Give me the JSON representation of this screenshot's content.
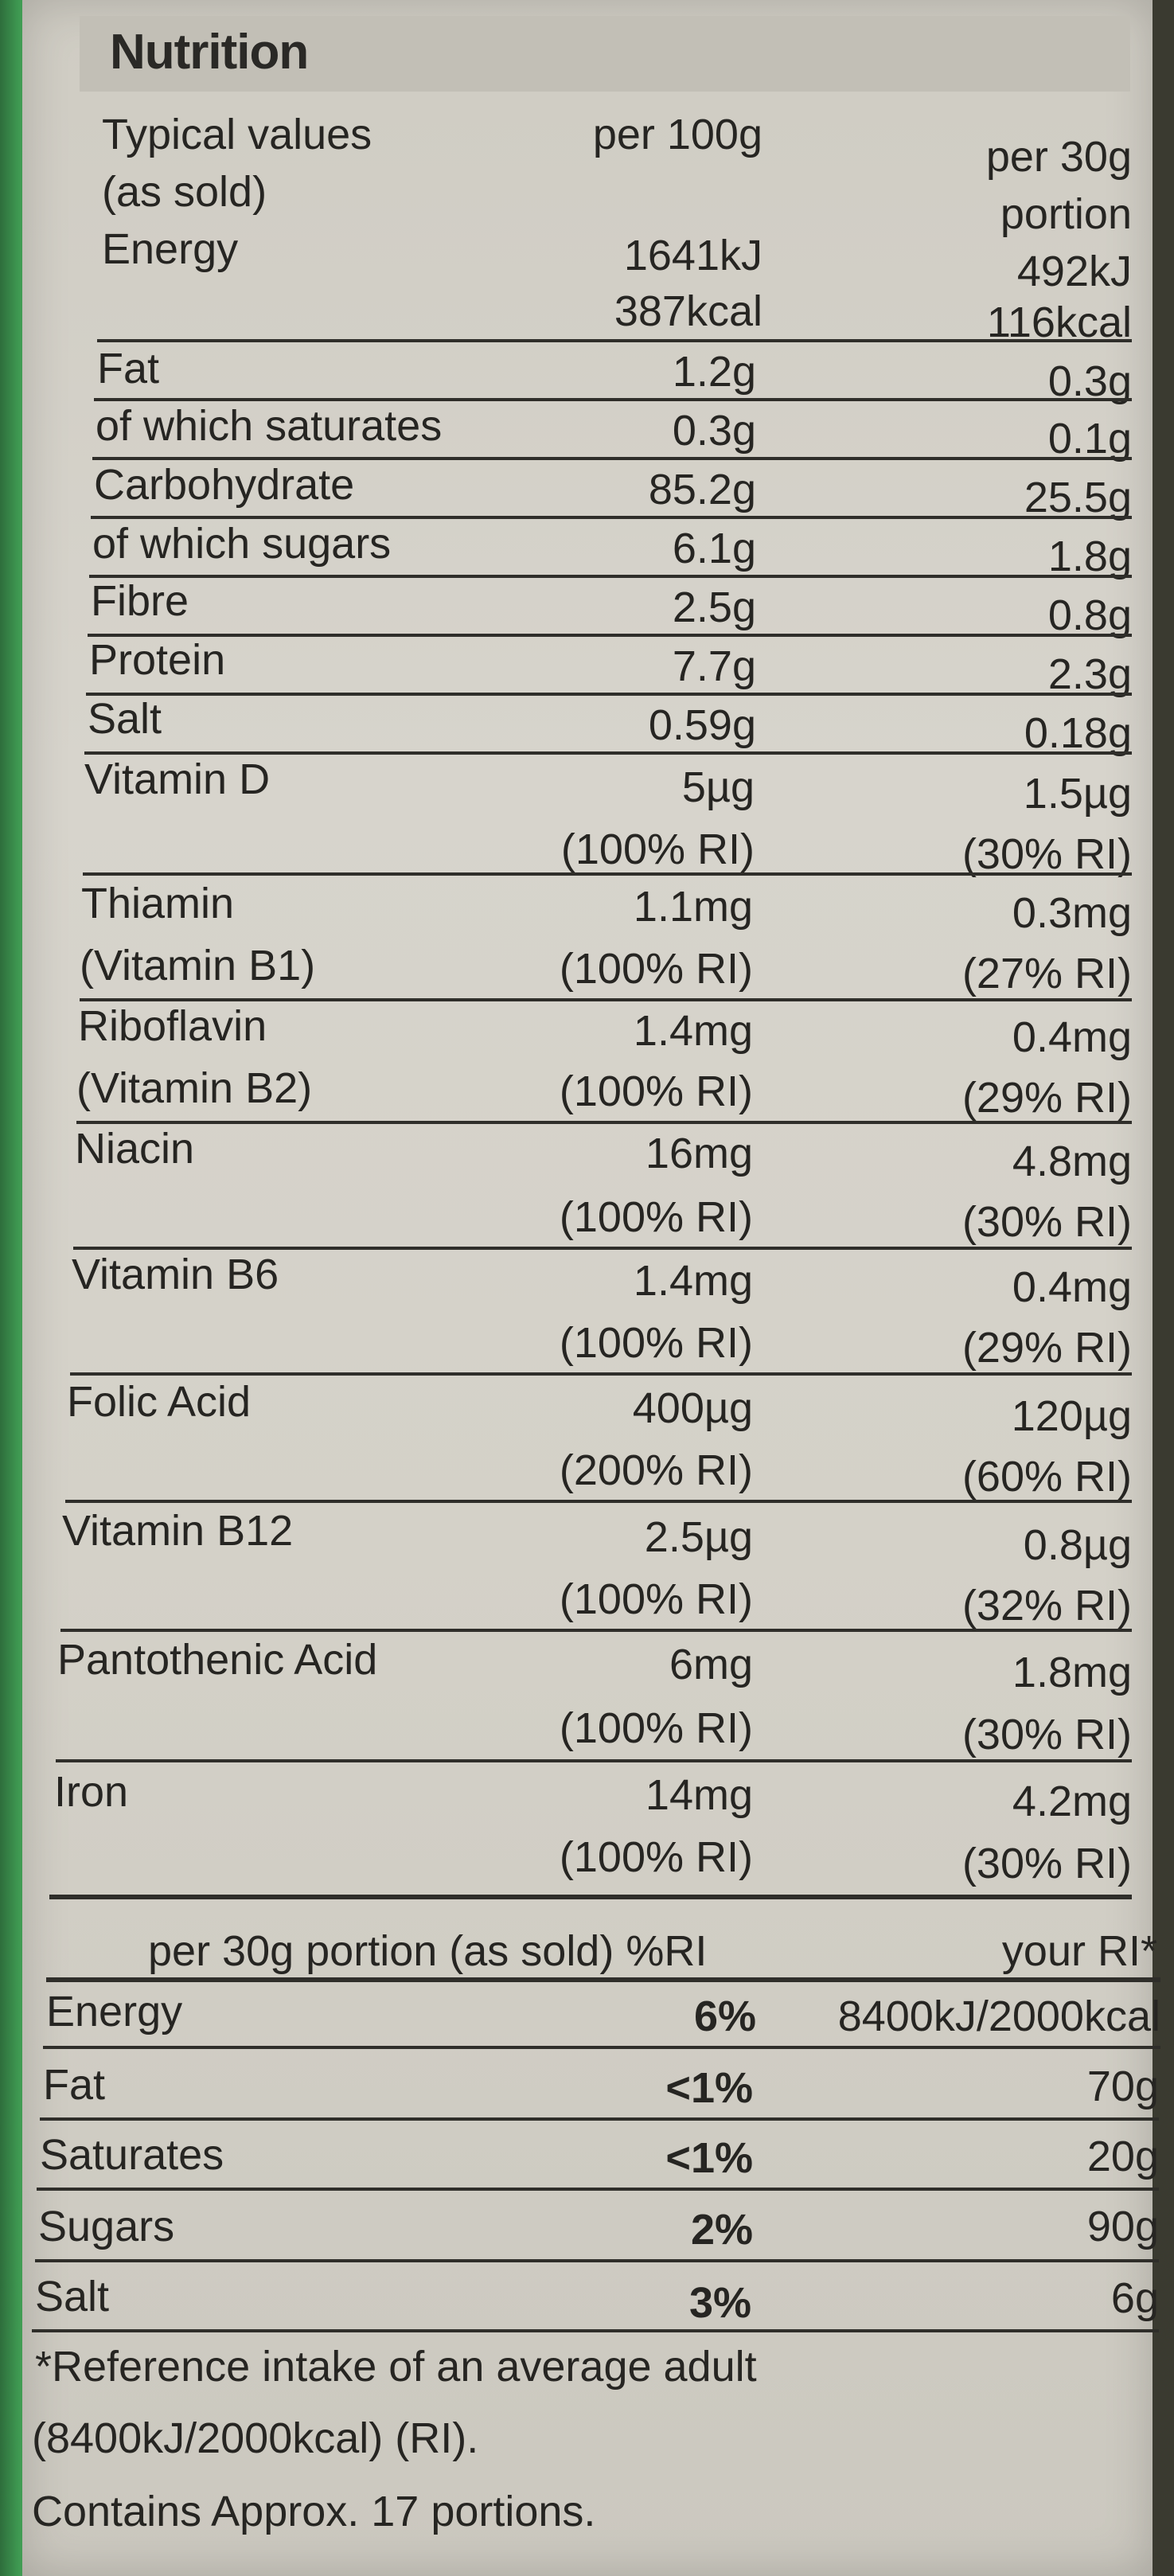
{
  "title": "Nutrition",
  "header": {
    "typical_values": "Typical values",
    "as_sold": "(as sold)",
    "per100": "per 100g",
    "per30_line1": "per 30g",
    "per30_line2": "portion"
  },
  "energy": {
    "label": "Energy",
    "kj100": "1641kJ",
    "kcal100": "387kcal",
    "kj30": "492kJ",
    "kcal30": "116kcal"
  },
  "nutrients": [
    {
      "label": "Fat",
      "per100": "1.2g",
      "per30": "0.3g"
    },
    {
      "label": "of which saturates",
      "per100": "0.3g",
      "per30": "0.1g"
    },
    {
      "label": "Carbohydrate",
      "per100": "85.2g",
      "per30": "25.5g"
    },
    {
      "label": "of which sugars",
      "per100": "6.1g",
      "per30": "1.8g"
    },
    {
      "label": "Fibre",
      "per100": "2.5g",
      "per30": "0.8g"
    },
    {
      "label": "Protein",
      "per100": "7.7g",
      "per30": "2.3g"
    },
    {
      "label": "Salt",
      "per100": "0.59g",
      "per30": "0.18g"
    }
  ],
  "vitamins": [
    {
      "label1": "Vitamin D",
      "label2": "",
      "per100": "5µg",
      "ri100": "(100% RI)",
      "per30": "1.5µg",
      "ri30": "(30% RI)"
    },
    {
      "label1": "Thiamin",
      "label2": "(Vitamin B1)",
      "per100": "1.1mg",
      "ri100": "(100% RI)",
      "per30": "0.3mg",
      "ri30": "(27% RI)"
    },
    {
      "label1": "Riboflavin",
      "label2": "(Vitamin B2)",
      "per100": "1.4mg",
      "ri100": "(100% RI)",
      "per30": "0.4mg",
      "ri30": "(29% RI)"
    },
    {
      "label1": "Niacin",
      "label2": "",
      "per100": "16mg",
      "ri100": "(100% RI)",
      "per30": "4.8mg",
      "ri30": "(30% RI)"
    },
    {
      "label1": "Vitamin B6",
      "label2": "",
      "per100": "1.4mg",
      "ri100": "(100% RI)",
      "per30": "0.4mg",
      "ri30": "(29% RI)"
    },
    {
      "label1": "Folic Acid",
      "label2": "",
      "per100": "400µg",
      "ri100": "(200% RI)",
      "per30": "120µg",
      "ri30": "(60% RI)"
    },
    {
      "label1": "Vitamin B12",
      "label2": "",
      "per100": "2.5µg",
      "ri100": "(100% RI)",
      "per30": "0.8µg",
      "ri30": "(32% RI)"
    },
    {
      "label1": "Pantothenic Acid",
      "label2": "",
      "per100": "6mg",
      "ri100": "(100% RI)",
      "per30": "1.8mg",
      "ri30": "(30% RI)"
    },
    {
      "label1": "Iron",
      "label2": "",
      "per100": "14mg",
      "ri100": "(100% RI)",
      "per30": "4.2mg",
      "ri30": "(30% RI)"
    }
  ],
  "ri_table": {
    "header_left": "per 30g portion (as sold) %RI",
    "header_right": "your RI*",
    "rows": [
      {
        "label": "Energy",
        "pct": "6%",
        "ri": "8400kJ/2000kcal"
      },
      {
        "label": "Fat",
        "pct": "<1%",
        "ri": "70g"
      },
      {
        "label": "Saturates",
        "pct": "<1%",
        "ri": "20g"
      },
      {
        "label": "Sugars",
        "pct": "2%",
        "ri": "90g"
      },
      {
        "label": "Salt",
        "pct": "3%",
        "ri": "6g"
      }
    ]
  },
  "footnote": {
    "line1": "*Reference intake of an average adult",
    "line2": "(8400kJ/2000kcal) (RI).",
    "line3": "Contains Approx. 17 portions."
  },
  "colors": {
    "paper": "#d4d1c8",
    "ink": "#262522",
    "box_green": "#3f9a52"
  }
}
